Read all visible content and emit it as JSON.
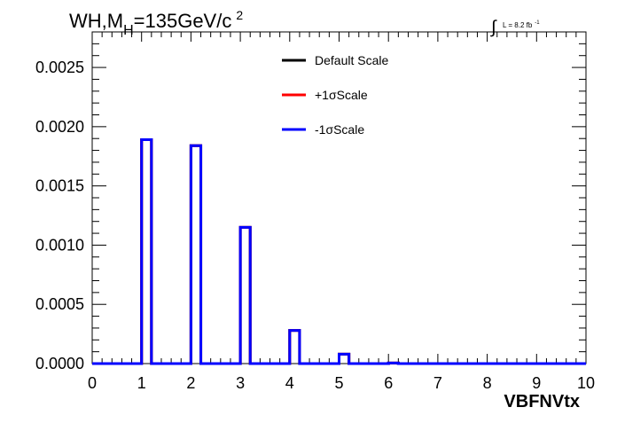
{
  "chart_data": {
    "type": "histogram",
    "title_main": "WH,M",
    "title_sub": "H",
    "title_rest": "=135GeV/c",
    "title_sup": "2",
    "lumi_symbol": "∫",
    "lumi_text": "L = 8.2 fb",
    "lumi_sup": "-1",
    "xlabel": "VBFNVtx",
    "ylabel": "",
    "xlim": [
      0,
      10
    ],
    "ylim": [
      0,
      0.0028
    ],
    "x_ticks": [
      0,
      1,
      2,
      3,
      4,
      5,
      6,
      7,
      8,
      9,
      10
    ],
    "x_tick_labels": [
      "0",
      "1",
      "2",
      "3",
      "4",
      "5",
      "6",
      "7",
      "8",
      "9",
      "10"
    ],
    "y_ticks": [
      0,
      0.0005,
      0.001,
      0.0015,
      0.002,
      0.0025
    ],
    "y_tick_labels": [
      "0.0000",
      "0.0005",
      "0.0010",
      "0.0015",
      "0.0020",
      "0.0025"
    ],
    "grid": false,
    "legend_position": "top-center",
    "bin_edges": [
      0,
      1,
      1.2,
      2,
      2.2,
      3,
      3.2,
      4,
      4.2,
      5,
      5.2,
      6,
      6.2,
      10
    ],
    "series": [
      {
        "name": "Default Scale",
        "color": "#000000",
        "values": [
          0,
          0.00189,
          0,
          0.00184,
          0,
          0.00115,
          0,
          0.00028,
          0,
          8e-05,
          0,
          5e-06,
          0
        ]
      },
      {
        "name": "+1σScale",
        "color": "#ff0000",
        "values": [
          0,
          0.00189,
          0,
          0.00184,
          0,
          0.00115,
          0,
          0.00028,
          0,
          8e-05,
          0,
          5e-06,
          0
        ]
      },
      {
        "name": "-1σScale",
        "color": "#0000ff",
        "values": [
          0,
          0.00189,
          0,
          0.00184,
          0,
          0.00115,
          0,
          0.00028,
          0,
          8e-05,
          0,
          5e-06,
          0
        ]
      }
    ]
  }
}
